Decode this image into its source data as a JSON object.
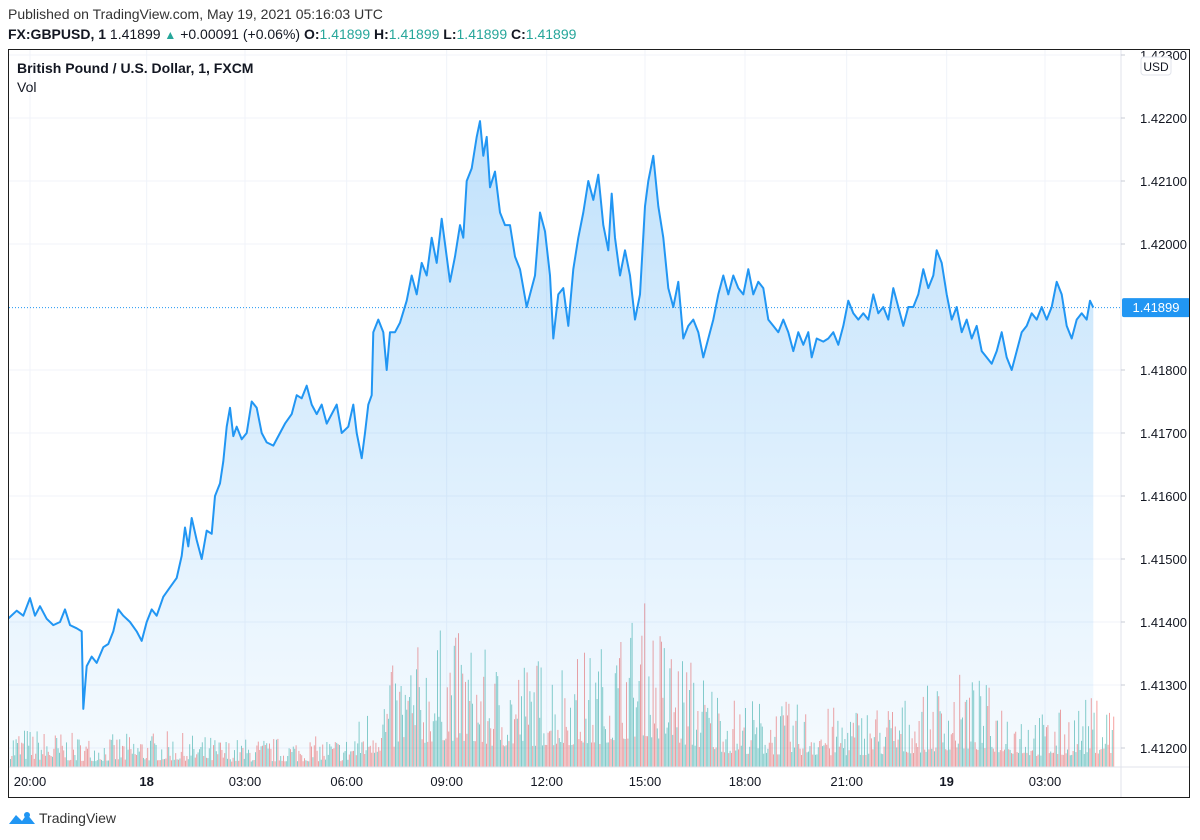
{
  "header": {
    "published": "Published on TradingView.com, May 19, 2021 05:16:03 UTC",
    "symbol": "FX:GBPUSD, 1",
    "last": "1.41899",
    "change": "+0.00091 (+0.06%)",
    "o_label": "O:",
    "o": "1.41899",
    "h_label": "H:",
    "h": "1.41899",
    "l_label": "L:",
    "l": "1.41899",
    "c_label": "C:",
    "c": "1.41899"
  },
  "legend": {
    "title": "British Pound / U.S. Dollar, 1, FXCM",
    "vol": "Vol"
  },
  "footer": {
    "brand": "TradingView"
  },
  "colors": {
    "line": "#2196f3",
    "up": "#26a69a",
    "down": "#ef5350",
    "price_label_bg": "#2196f3",
    "grid": "#f0f3fa"
  },
  "chart_data": {
    "type": "area",
    "title": "British Pound / U.S. Dollar, 1, FXCM",
    "currency": "USD",
    "ylim": [
      1.41175,
      1.42305
    ],
    "yticks": [
      "1.42300",
      "1.42200",
      "1.42100",
      "1.42000",
      "1.41800",
      "1.41700",
      "1.41600",
      "1.41500",
      "1.41400",
      "1.41300",
      "1.41200"
    ],
    "ytick_values": [
      1.423,
      1.422,
      1.421,
      1.42,
      1.418,
      1.417,
      1.416,
      1.415,
      1.414,
      1.413,
      1.412
    ],
    "last_price": 1.41899,
    "last_price_label": "1.41899",
    "x_unit": "hours since 20:00 (May 17)",
    "xlim": [
      -0.66,
      32.5
    ],
    "xticks": [
      {
        "label": "20:00",
        "h": 0,
        "bold": false
      },
      {
        "label": "18",
        "h": 3.5,
        "bold": true
      },
      {
        "label": "03:00",
        "h": 6.45,
        "bold": false
      },
      {
        "label": "06:00",
        "h": 9.5,
        "bold": false
      },
      {
        "label": "09:00",
        "h": 12.5,
        "bold": false
      },
      {
        "label": "12:00",
        "h": 15.5,
        "bold": false
      },
      {
        "label": "15:00",
        "h": 18.45,
        "bold": false
      },
      {
        "label": "18:00",
        "h": 21.45,
        "bold": false
      },
      {
        "label": "21:00",
        "h": 24.5,
        "bold": false
      },
      {
        "label": "19",
        "h": 27.5,
        "bold": true
      },
      {
        "label": "03:00",
        "h": 30.45,
        "bold": false
      }
    ],
    "series": [
      {
        "name": "GBPUSD close",
        "points": [
          [
            -0.66,
            1.41405
          ],
          [
            -0.4,
            1.41418
          ],
          [
            -0.2,
            1.4141
          ],
          [
            0.0,
            1.41438
          ],
          [
            0.15,
            1.4141
          ],
          [
            0.3,
            1.41425
          ],
          [
            0.5,
            1.41405
          ],
          [
            0.7,
            1.41395
          ],
          [
            0.9,
            1.414
          ],
          [
            1.05,
            1.4142
          ],
          [
            1.2,
            1.41395
          ],
          [
            1.4,
            1.4139
          ],
          [
            1.55,
            1.41385
          ],
          [
            1.6,
            1.41262
          ],
          [
            1.7,
            1.4133
          ],
          [
            1.85,
            1.41345
          ],
          [
            2.0,
            1.41335
          ],
          [
            2.2,
            1.4136
          ],
          [
            2.35,
            1.41365
          ],
          [
            2.5,
            1.41385
          ],
          [
            2.65,
            1.4142
          ],
          [
            2.8,
            1.4141
          ],
          [
            3.0,
            1.414
          ],
          [
            3.2,
            1.41385
          ],
          [
            3.35,
            1.4137
          ],
          [
            3.5,
            1.414
          ],
          [
            3.65,
            1.4142
          ],
          [
            3.8,
            1.4141
          ],
          [
            4.0,
            1.4144
          ],
          [
            4.2,
            1.41455
          ],
          [
            4.4,
            1.4147
          ],
          [
            4.55,
            1.41505
          ],
          [
            4.65,
            1.4155
          ],
          [
            4.75,
            1.4152
          ],
          [
            4.85,
            1.41565
          ],
          [
            5.0,
            1.4153
          ],
          [
            5.15,
            1.415
          ],
          [
            5.3,
            1.41545
          ],
          [
            5.45,
            1.4154
          ],
          [
            5.55,
            1.416
          ],
          [
            5.7,
            1.4162
          ],
          [
            5.8,
            1.41655
          ],
          [
            5.9,
            1.4171
          ],
          [
            6.0,
            1.4174
          ],
          [
            6.1,
            1.41695
          ],
          [
            6.2,
            1.4171
          ],
          [
            6.35,
            1.4169
          ],
          [
            6.5,
            1.417
          ],
          [
            6.65,
            1.4175
          ],
          [
            6.8,
            1.4174
          ],
          [
            6.95,
            1.417
          ],
          [
            7.1,
            1.41685
          ],
          [
            7.3,
            1.4168
          ],
          [
            7.5,
            1.417
          ],
          [
            7.65,
            1.41715
          ],
          [
            7.85,
            1.4173
          ],
          [
            8.0,
            1.4176
          ],
          [
            8.15,
            1.41755
          ],
          [
            8.3,
            1.41775
          ],
          [
            8.45,
            1.41745
          ],
          [
            8.6,
            1.4173
          ],
          [
            8.75,
            1.41745
          ],
          [
            8.9,
            1.41715
          ],
          [
            9.05,
            1.4173
          ],
          [
            9.2,
            1.41745
          ],
          [
            9.35,
            1.417
          ],
          [
            9.55,
            1.4171
          ],
          [
            9.7,
            1.41745
          ],
          [
            9.8,
            1.417
          ],
          [
            9.95,
            1.4166
          ],
          [
            10.05,
            1.417
          ],
          [
            10.15,
            1.41745
          ],
          [
            10.25,
            1.4176
          ],
          [
            10.3,
            1.4186
          ],
          [
            10.45,
            1.4188
          ],
          [
            10.6,
            1.4186
          ],
          [
            10.7,
            1.418
          ],
          [
            10.8,
            1.4186
          ],
          [
            10.95,
            1.4186
          ],
          [
            11.1,
            1.41875
          ],
          [
            11.3,
            1.4191
          ],
          [
            11.45,
            1.4195
          ],
          [
            11.6,
            1.4192
          ],
          [
            11.75,
            1.4197
          ],
          [
            11.9,
            1.4195
          ],
          [
            12.05,
            1.4201
          ],
          [
            12.2,
            1.4197
          ],
          [
            12.35,
            1.4204
          ],
          [
            12.5,
            1.4198
          ],
          [
            12.6,
            1.4194
          ],
          [
            12.75,
            1.4198
          ],
          [
            12.9,
            1.4203
          ],
          [
            13.0,
            1.4201
          ],
          [
            13.1,
            1.421
          ],
          [
            13.25,
            1.4212
          ],
          [
            13.4,
            1.4217
          ],
          [
            13.5,
            1.42195
          ],
          [
            13.6,
            1.4214
          ],
          [
            13.7,
            1.4217
          ],
          [
            13.8,
            1.4209
          ],
          [
            13.95,
            1.42115
          ],
          [
            14.1,
            1.4205
          ],
          [
            14.25,
            1.4203
          ],
          [
            14.4,
            1.4203
          ],
          [
            14.55,
            1.4198
          ],
          [
            14.7,
            1.4196
          ],
          [
            14.9,
            1.419
          ],
          [
            15.0,
            1.4192
          ],
          [
            15.15,
            1.4195
          ],
          [
            15.3,
            1.4205
          ],
          [
            15.45,
            1.4202
          ],
          [
            15.6,
            1.4195
          ],
          [
            15.7,
            1.4185
          ],
          [
            15.85,
            1.4192
          ],
          [
            16.0,
            1.4193
          ],
          [
            16.15,
            1.4187
          ],
          [
            16.3,
            1.4196
          ],
          [
            16.45,
            1.4201
          ],
          [
            16.6,
            1.4205
          ],
          [
            16.75,
            1.421
          ],
          [
            16.9,
            1.4207
          ],
          [
            17.05,
            1.4211
          ],
          [
            17.2,
            1.4203
          ],
          [
            17.35,
            1.4199
          ],
          [
            17.45,
            1.4208
          ],
          [
            17.55,
            1.4201
          ],
          [
            17.7,
            1.4195
          ],
          [
            17.85,
            1.4199
          ],
          [
            18.0,
            1.4195
          ],
          [
            18.15,
            1.4188
          ],
          [
            18.3,
            1.4192
          ],
          [
            18.45,
            1.4206
          ],
          [
            18.55,
            1.421
          ],
          [
            18.7,
            1.4214
          ],
          [
            18.85,
            1.4206
          ],
          [
            19.0,
            1.4201
          ],
          [
            19.15,
            1.4193
          ],
          [
            19.3,
            1.419
          ],
          [
            19.45,
            1.4194
          ],
          [
            19.6,
            1.4185
          ],
          [
            19.75,
            1.4187
          ],
          [
            19.9,
            1.4188
          ],
          [
            20.05,
            1.4186
          ],
          [
            20.2,
            1.4182
          ],
          [
            20.35,
            1.4185
          ],
          [
            20.5,
            1.4188
          ],
          [
            20.65,
            1.4192
          ],
          [
            20.8,
            1.4195
          ],
          [
            20.95,
            1.4192
          ],
          [
            21.1,
            1.4195
          ],
          [
            21.25,
            1.4193
          ],
          [
            21.4,
            1.4192
          ],
          [
            21.55,
            1.4196
          ],
          [
            21.7,
            1.4192
          ],
          [
            21.85,
            1.4194
          ],
          [
            22.0,
            1.4193
          ],
          [
            22.15,
            1.4188
          ],
          [
            22.3,
            1.4187
          ],
          [
            22.45,
            1.4186
          ],
          [
            22.6,
            1.4188
          ],
          [
            22.75,
            1.4186
          ],
          [
            22.9,
            1.4183
          ],
          [
            23.05,
            1.4186
          ],
          [
            23.2,
            1.4184
          ],
          [
            23.35,
            1.4186
          ],
          [
            23.45,
            1.4182
          ],
          [
            23.6,
            1.4185
          ],
          [
            23.8,
            1.41845
          ],
          [
            23.95,
            1.4185
          ],
          [
            24.1,
            1.4186
          ],
          [
            24.25,
            1.4184
          ],
          [
            24.4,
            1.4187
          ],
          [
            24.55,
            1.4191
          ],
          [
            24.7,
            1.4189
          ],
          [
            24.85,
            1.4188
          ],
          [
            25.0,
            1.4189
          ],
          [
            25.15,
            1.4188
          ],
          [
            25.3,
            1.4192
          ],
          [
            25.45,
            1.4189
          ],
          [
            25.6,
            1.419
          ],
          [
            25.75,
            1.4188
          ],
          [
            25.9,
            1.4193
          ],
          [
            26.05,
            1.419
          ],
          [
            26.2,
            1.4187
          ],
          [
            26.35,
            1.419
          ],
          [
            26.5,
            1.419
          ],
          [
            26.65,
            1.4192
          ],
          [
            26.8,
            1.4196
          ],
          [
            26.95,
            1.4193
          ],
          [
            27.1,
            1.4195
          ],
          [
            27.2,
            1.4199
          ],
          [
            27.35,
            1.4197
          ],
          [
            27.5,
            1.4192
          ],
          [
            27.65,
            1.4188
          ],
          [
            27.8,
            1.419
          ],
          [
            27.95,
            1.4186
          ],
          [
            28.1,
            1.4188
          ],
          [
            28.25,
            1.4185
          ],
          [
            28.4,
            1.4187
          ],
          [
            28.55,
            1.4183
          ],
          [
            28.7,
            1.4182
          ],
          [
            28.85,
            1.4181
          ],
          [
            29.0,
            1.4183
          ],
          [
            29.15,
            1.4186
          ],
          [
            29.3,
            1.4182
          ],
          [
            29.45,
            1.418
          ],
          [
            29.6,
            1.4183
          ],
          [
            29.75,
            1.4186
          ],
          [
            29.9,
            1.4187
          ],
          [
            30.05,
            1.4189
          ],
          [
            30.2,
            1.4188
          ],
          [
            30.35,
            1.419
          ],
          [
            30.5,
            1.4188
          ],
          [
            30.65,
            1.419
          ],
          [
            30.8,
            1.4194
          ],
          [
            30.95,
            1.4192
          ],
          [
            31.1,
            1.4187
          ],
          [
            31.25,
            1.4185
          ],
          [
            31.4,
            1.4188
          ],
          [
            31.55,
            1.4189
          ],
          [
            31.7,
            1.4188
          ],
          [
            31.8,
            1.4191
          ],
          [
            31.9,
            1.41899
          ]
        ]
      }
    ],
    "volume_series": {
      "name": "Vol",
      "segments_h": [
        -0.66,
        1.8,
        4.0,
        6.0,
        9.5,
        11.0,
        12.5,
        14.0,
        17.0,
        18.4,
        19.2,
        21.0,
        24.0,
        26.0,
        28.0,
        30.5,
        31.9
      ],
      "relative_level": [
        0.18,
        0.13,
        0.15,
        0.12,
        0.13,
        0.45,
        0.6,
        0.45,
        0.5,
        0.7,
        0.55,
        0.3,
        0.25,
        0.28,
        0.4,
        0.22,
        0.3
      ]
    }
  }
}
